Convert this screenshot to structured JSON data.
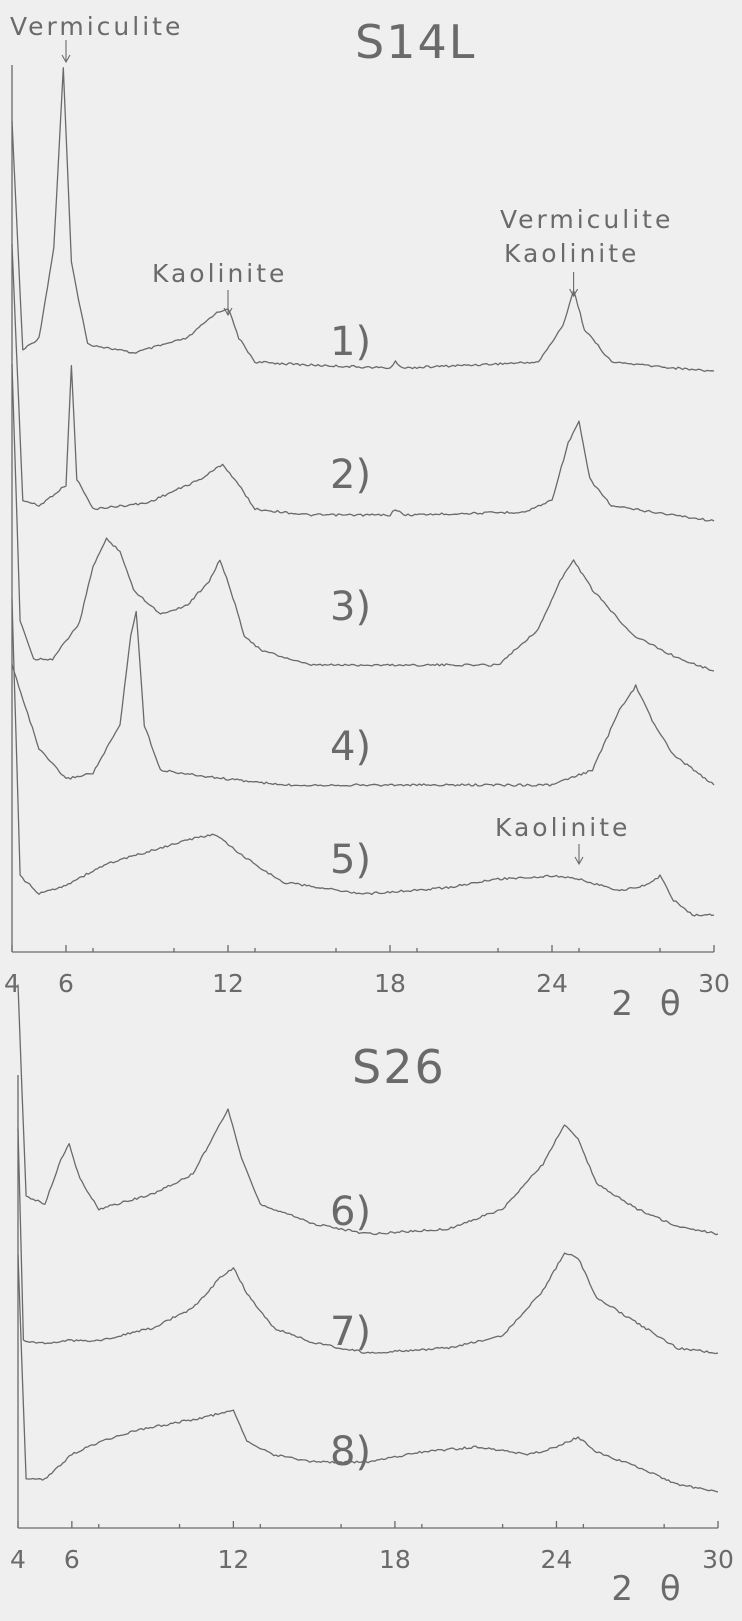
{
  "chart_data": [
    {
      "type": "line",
      "title": "S14L",
      "xlabel": "2 θ",
      "ylabel": "",
      "xlim": [
        4,
        30
      ],
      "x_ticks": [
        4,
        6,
        12,
        18,
        24,
        30
      ],
      "x_tick_labels": [
        "4",
        "6",
        "12",
        "18",
        "24",
        "30"
      ],
      "grid": false,
      "legend": "none",
      "series": [
        {
          "name": "1)",
          "values": [
            [
              4,
              0.82
            ],
            [
              4.4,
              0.06
            ],
            [
              5.0,
              0.1
            ],
            [
              5.55,
              0.4
            ],
            [
              5.9,
              1.0
            ],
            [
              6.2,
              0.35
            ],
            [
              6.8,
              0.08
            ],
            [
              8.5,
              0.05
            ],
            [
              10.5,
              0.1
            ],
            [
              11.5,
              0.18
            ],
            [
              12.0,
              0.2
            ],
            [
              12.4,
              0.1
            ],
            [
              13.0,
              0.02
            ],
            [
              15.0,
              0.01
            ],
            [
              18.0,
              0.0
            ],
            [
              18.2,
              0.02
            ],
            [
              18.5,
              0.0
            ],
            [
              23.5,
              0.02
            ],
            [
              24.4,
              0.14
            ],
            [
              24.8,
              0.26
            ],
            [
              25.2,
              0.13
            ],
            [
              26.2,
              0.02
            ],
            [
              28.5,
              0.0
            ],
            [
              30,
              -0.01
            ]
          ]
        },
        {
          "name": "2)",
          "values": [
            [
              4,
              0.9
            ],
            [
              4.4,
              0.05
            ],
            [
              5.0,
              0.03
            ],
            [
              6.0,
              0.1
            ],
            [
              6.2,
              0.5
            ],
            [
              6.4,
              0.12
            ],
            [
              7.0,
              0.02
            ],
            [
              9.0,
              0.04
            ],
            [
              11.0,
              0.12
            ],
            [
              11.8,
              0.17
            ],
            [
              12.4,
              0.1
            ],
            [
              13.0,
              0.02
            ],
            [
              15.0,
              0.0
            ],
            [
              18.0,
              0.0
            ],
            [
              18.2,
              0.02
            ],
            [
              18.5,
              0.0
            ],
            [
              23.0,
              0.01
            ],
            [
              24.0,
              0.05
            ],
            [
              24.6,
              0.24
            ],
            [
              25.0,
              0.31
            ],
            [
              25.4,
              0.12
            ],
            [
              26.2,
              0.03
            ],
            [
              28.5,
              0.0
            ],
            [
              30,
              -0.02
            ]
          ]
        },
        {
          "name": "3)",
          "values": [
            [
              4,
              1.0
            ],
            [
              4.3,
              0.15
            ],
            [
              4.8,
              0.02
            ],
            [
              5.5,
              0.02
            ],
            [
              6.5,
              0.14
            ],
            [
              7.0,
              0.33
            ],
            [
              7.5,
              0.42
            ],
            [
              8.0,
              0.38
            ],
            [
              8.5,
              0.25
            ],
            [
              9.5,
              0.17
            ],
            [
              10.5,
              0.2
            ],
            [
              11.3,
              0.28
            ],
            [
              11.7,
              0.35
            ],
            [
              12.1,
              0.25
            ],
            [
              12.6,
              0.1
            ],
            [
              13.2,
              0.05
            ],
            [
              15.0,
              0.0
            ],
            [
              18.0,
              0.0
            ],
            [
              22.0,
              0.0
            ],
            [
              23.5,
              0.12
            ],
            [
              24.3,
              0.28
            ],
            [
              24.8,
              0.35
            ],
            [
              25.5,
              0.25
            ],
            [
              26.0,
              0.2
            ],
            [
              27.0,
              0.1
            ],
            [
              28.5,
              0.03
            ],
            [
              30,
              -0.02
            ]
          ]
        },
        {
          "name": "4)",
          "values": [
            [
              4,
              0.4
            ],
            [
              5.0,
              0.12
            ],
            [
              6.0,
              0.02
            ],
            [
              7.0,
              0.04
            ],
            [
              8.0,
              0.2
            ],
            [
              8.4,
              0.5
            ],
            [
              8.6,
              0.58
            ],
            [
              8.9,
              0.2
            ],
            [
              9.5,
              0.05
            ],
            [
              11.0,
              0.03
            ],
            [
              14.0,
              0.0
            ],
            [
              20.0,
              0.0
            ],
            [
              24.0,
              0.0
            ],
            [
              25.5,
              0.05
            ],
            [
              26.5,
              0.25
            ],
            [
              27.1,
              0.33
            ],
            [
              27.8,
              0.2
            ],
            [
              28.5,
              0.1
            ],
            [
              30,
              0.0
            ]
          ]
        },
        {
          "name": "5)",
          "values": [
            [
              4,
              1.0
            ],
            [
              4.3,
              0.08
            ],
            [
              5.0,
              0.02
            ],
            [
              6.0,
              0.05
            ],
            [
              7.5,
              0.12
            ],
            [
              9.0,
              0.16
            ],
            [
              10.5,
              0.2
            ],
            [
              11.5,
              0.22
            ],
            [
              12.5,
              0.15
            ],
            [
              14.0,
              0.06
            ],
            [
              17.0,
              0.02
            ],
            [
              20.0,
              0.04
            ],
            [
              22.0,
              0.07
            ],
            [
              24.0,
              0.08
            ],
            [
              25.0,
              0.07
            ],
            [
              26.5,
              0.03
            ],
            [
              27.5,
              0.05
            ],
            [
              28.0,
              0.08
            ],
            [
              28.5,
              0.0
            ],
            [
              29.2,
              -0.05
            ],
            [
              30,
              -0.05
            ]
          ]
        }
      ],
      "annotations": [
        {
          "text": "Vermiculite",
          "x": 6
        },
        {
          "text": "Kaolinite",
          "x": 12
        },
        {
          "text": "Vermiculite",
          "x": 24.8
        },
        {
          "text": "Kaolinite",
          "x": 24.8
        },
        {
          "text": "Kaolinite",
          "x": 25
        }
      ]
    },
    {
      "type": "line",
      "title": "S26",
      "xlabel": "2 θ",
      "ylabel": "",
      "xlim": [
        4,
        30
      ],
      "x_ticks": [
        4,
        6,
        12,
        18,
        24,
        30
      ],
      "x_tick_labels": [
        "4",
        "6",
        "12",
        "18",
        "24",
        "30"
      ],
      "grid": false,
      "legend": "none",
      "series": [
        {
          "name": "6)",
          "values": [
            [
              4,
              1.0
            ],
            [
              4.3,
              0.15
            ],
            [
              5.0,
              0.12
            ],
            [
              5.6,
              0.3
            ],
            [
              5.9,
              0.36
            ],
            [
              6.3,
              0.22
            ],
            [
              7.0,
              0.1
            ],
            [
              9.0,
              0.16
            ],
            [
              10.5,
              0.24
            ],
            [
              11.3,
              0.4
            ],
            [
              11.8,
              0.5
            ],
            [
              12.3,
              0.3
            ],
            [
              13.0,
              0.12
            ],
            [
              15.0,
              0.04
            ],
            [
              17.0,
              0.0
            ],
            [
              20.0,
              0.02
            ],
            [
              22.0,
              0.1
            ],
            [
              23.5,
              0.28
            ],
            [
              24.3,
              0.44
            ],
            [
              24.8,
              0.38
            ],
            [
              25.5,
              0.2
            ],
            [
              27.0,
              0.1
            ],
            [
              28.5,
              0.03
            ],
            [
              30,
              0.0
            ]
          ]
        },
        {
          "name": "7)",
          "values": [
            [
              4,
              0.9
            ],
            [
              4.2,
              0.05
            ],
            [
              5.0,
              0.04
            ],
            [
              6.0,
              0.05
            ],
            [
              7.0,
              0.05
            ],
            [
              9.0,
              0.1
            ],
            [
              10.5,
              0.18
            ],
            [
              11.5,
              0.3
            ],
            [
              12.0,
              0.34
            ],
            [
              12.5,
              0.24
            ],
            [
              13.5,
              0.1
            ],
            [
              15.0,
              0.04
            ],
            [
              17.0,
              0.0
            ],
            [
              20.0,
              0.02
            ],
            [
              22.0,
              0.07
            ],
            [
              23.5,
              0.25
            ],
            [
              24.3,
              0.4
            ],
            [
              24.8,
              0.38
            ],
            [
              25.5,
              0.22
            ],
            [
              27.0,
              0.12
            ],
            [
              28.5,
              0.02
            ],
            [
              30,
              0.0
            ]
          ]
        },
        {
          "name": "8)",
          "values": [
            [
              4,
              0.95
            ],
            [
              4.3,
              0.05
            ],
            [
              5.0,
              0.05
            ],
            [
              6.0,
              0.15
            ],
            [
              7.0,
              0.2
            ],
            [
              8.5,
              0.25
            ],
            [
              10.0,
              0.28
            ],
            [
              11.0,
              0.3
            ],
            [
              12.0,
              0.33
            ],
            [
              12.5,
              0.2
            ],
            [
              13.5,
              0.15
            ],
            [
              15.0,
              0.12
            ],
            [
              17.0,
              0.12
            ],
            [
              19.0,
              0.16
            ],
            [
              21.0,
              0.18
            ],
            [
              23.0,
              0.15
            ],
            [
              24.0,
              0.18
            ],
            [
              24.8,
              0.22
            ],
            [
              25.5,
              0.16
            ],
            [
              27.0,
              0.1
            ],
            [
              28.5,
              0.03
            ],
            [
              30,
              0.0
            ]
          ]
        }
      ]
    }
  ]
}
